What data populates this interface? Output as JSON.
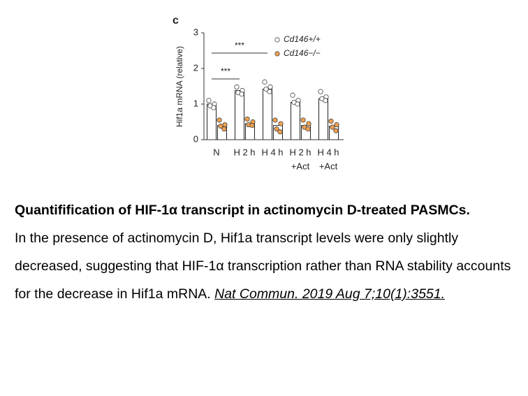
{
  "chart_data": {
    "type": "bar",
    "panel_label": "c",
    "ylabel": "Hif1a mRNA (relative)",
    "categories": [
      [
        "N"
      ],
      [
        "H 2 h"
      ],
      [
        "H 4 h"
      ],
      [
        "H 2 h",
        "+Act"
      ],
      [
        "H 4 h",
        "+Act"
      ]
    ],
    "series": [
      {
        "name": "Cd146+/+",
        "color": "#ffffff",
        "point_color": "#ffffff",
        "values": [
          1.0,
          1.38,
          1.42,
          1.05,
          1.15
        ],
        "points": [
          [
            1.1,
            1.0,
            0.95,
            0.9
          ],
          [
            1.48,
            1.38,
            1.32,
            1.28
          ],
          [
            1.62,
            1.48,
            1.42,
            1.35
          ],
          [
            1.25,
            1.1,
            1.05,
            1.0
          ],
          [
            1.35,
            1.2,
            1.15,
            1.1
          ]
        ]
      },
      {
        "name": "Cd146−/−",
        "color": "#ffffff",
        "point_color": "#f0a050",
        "values": [
          0.4,
          0.45,
          0.4,
          0.4,
          0.38
        ],
        "points": [
          [
            0.55,
            0.42,
            0.38,
            0.3
          ],
          [
            0.58,
            0.5,
            0.42,
            0.4
          ],
          [
            0.55,
            0.45,
            0.3,
            0.22
          ],
          [
            0.55,
            0.45,
            0.35,
            0.3
          ],
          [
            0.52,
            0.42,
            0.35,
            0.25
          ]
        ]
      }
    ],
    "ylim": [
      0,
      3
    ],
    "yticks": [
      0,
      1,
      2,
      3
    ],
    "annotations": [
      {
        "text": "***"
      },
      {
        "text": "***"
      }
    ]
  },
  "caption": {
    "title": "Quantifification of HIF-1α transcript in actinomycin D-treated PASMCs.",
    "body": "In the presence of actinomycin D, Hif1a transcript levels were only slightly decreased, suggesting that HIF-1α transcription rather than RNA stability accounts for the decrease in Hif1a mRNA.",
    "citation": "Nat Commun. 2019 Aug 7;10(1):3551."
  }
}
